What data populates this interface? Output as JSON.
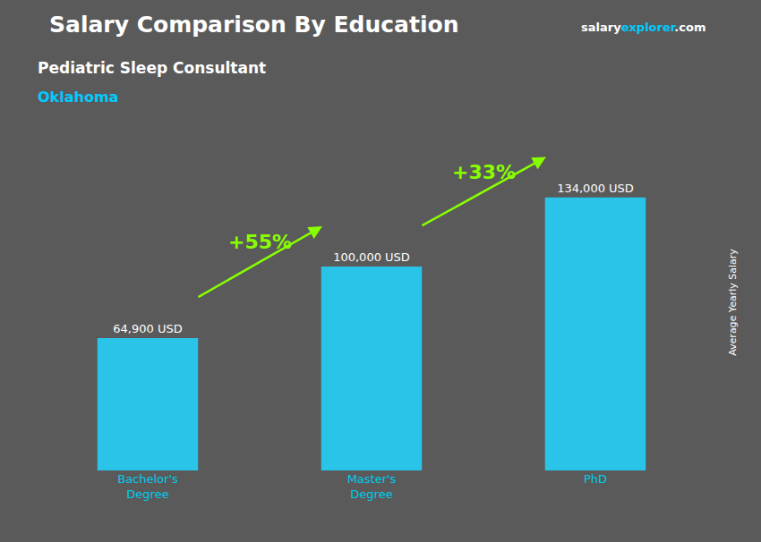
{
  "chart_data": {
    "type": "bar",
    "title": "Salary Comparison By Education",
    "subtitle": "Pediatric Sleep Consultant",
    "ylabel": "Average Yearly Salary",
    "categories": [
      "Bachelor's\nDegree",
      "Master's\nDegree",
      "PhD"
    ],
    "values": [
      64900,
      100000,
      134000
    ],
    "value_labels": [
      "64,900 USD",
      "100,000 USD",
      "134,000 USD"
    ],
    "data_labels": true,
    "color": "#29c4e8",
    "ylim": [
      0,
      165000
    ],
    "tick_labels": "x",
    "grid": false,
    "annotations": [
      {
        "text": "Oklahoma",
        "color": "#00ccff"
      },
      {
        "parts": [
          {
            "text": "salary",
            "color": "#ffffff"
          },
          {
            "text": "explorer",
            "color": "#00ccff"
          },
          {
            "text": ".com",
            "color": "#ffffff"
          }
        ]
      },
      {
        "text": "+55%",
        "color": "#88ff00",
        "from": "Bachelor's\nDegree",
        "to": "Master's\nDegree"
      },
      {
        "text": "+33%",
        "color": "#88ff00",
        "from": "Master's\nDegree",
        "to": "PhD"
      }
    ]
  }
}
